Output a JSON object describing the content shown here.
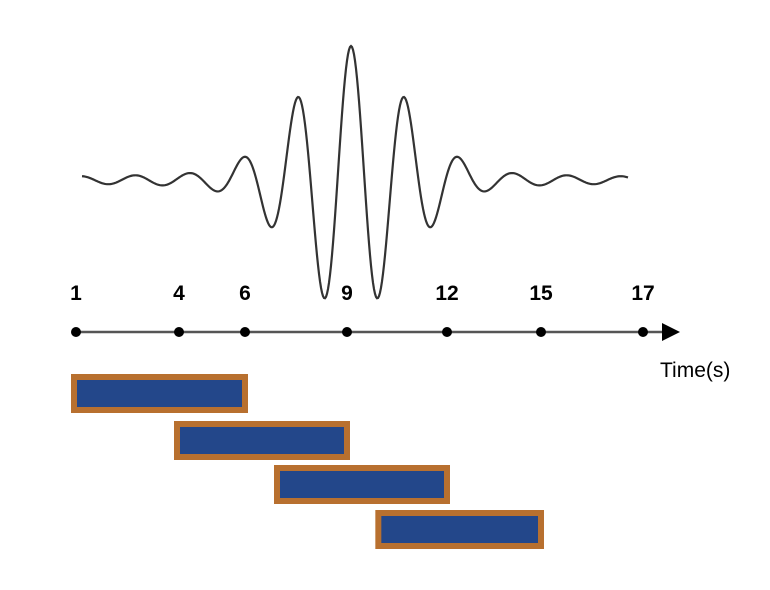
{
  "timeline": {
    "ticks": [
      {
        "label": "1",
        "value": 1
      },
      {
        "label": "4",
        "value": 4
      },
      {
        "label": "6",
        "value": 6
      },
      {
        "label": "9",
        "value": 9
      },
      {
        "label": "12",
        "value": 12
      },
      {
        "label": "15",
        "value": 15
      },
      {
        "label": "17",
        "value": 17
      }
    ],
    "axis_label": "Time(s)"
  },
  "windows": [
    {
      "start": 1,
      "end": 6
    },
    {
      "start": 4,
      "end": 9
    },
    {
      "start": 7,
      "end": 12
    },
    {
      "start": 10,
      "end": 15
    }
  ],
  "colors": {
    "wave": "#333333",
    "axis": "#555555",
    "tick_dot": "#000000",
    "window_fill": "#23478a",
    "window_border": "#b8702f"
  }
}
